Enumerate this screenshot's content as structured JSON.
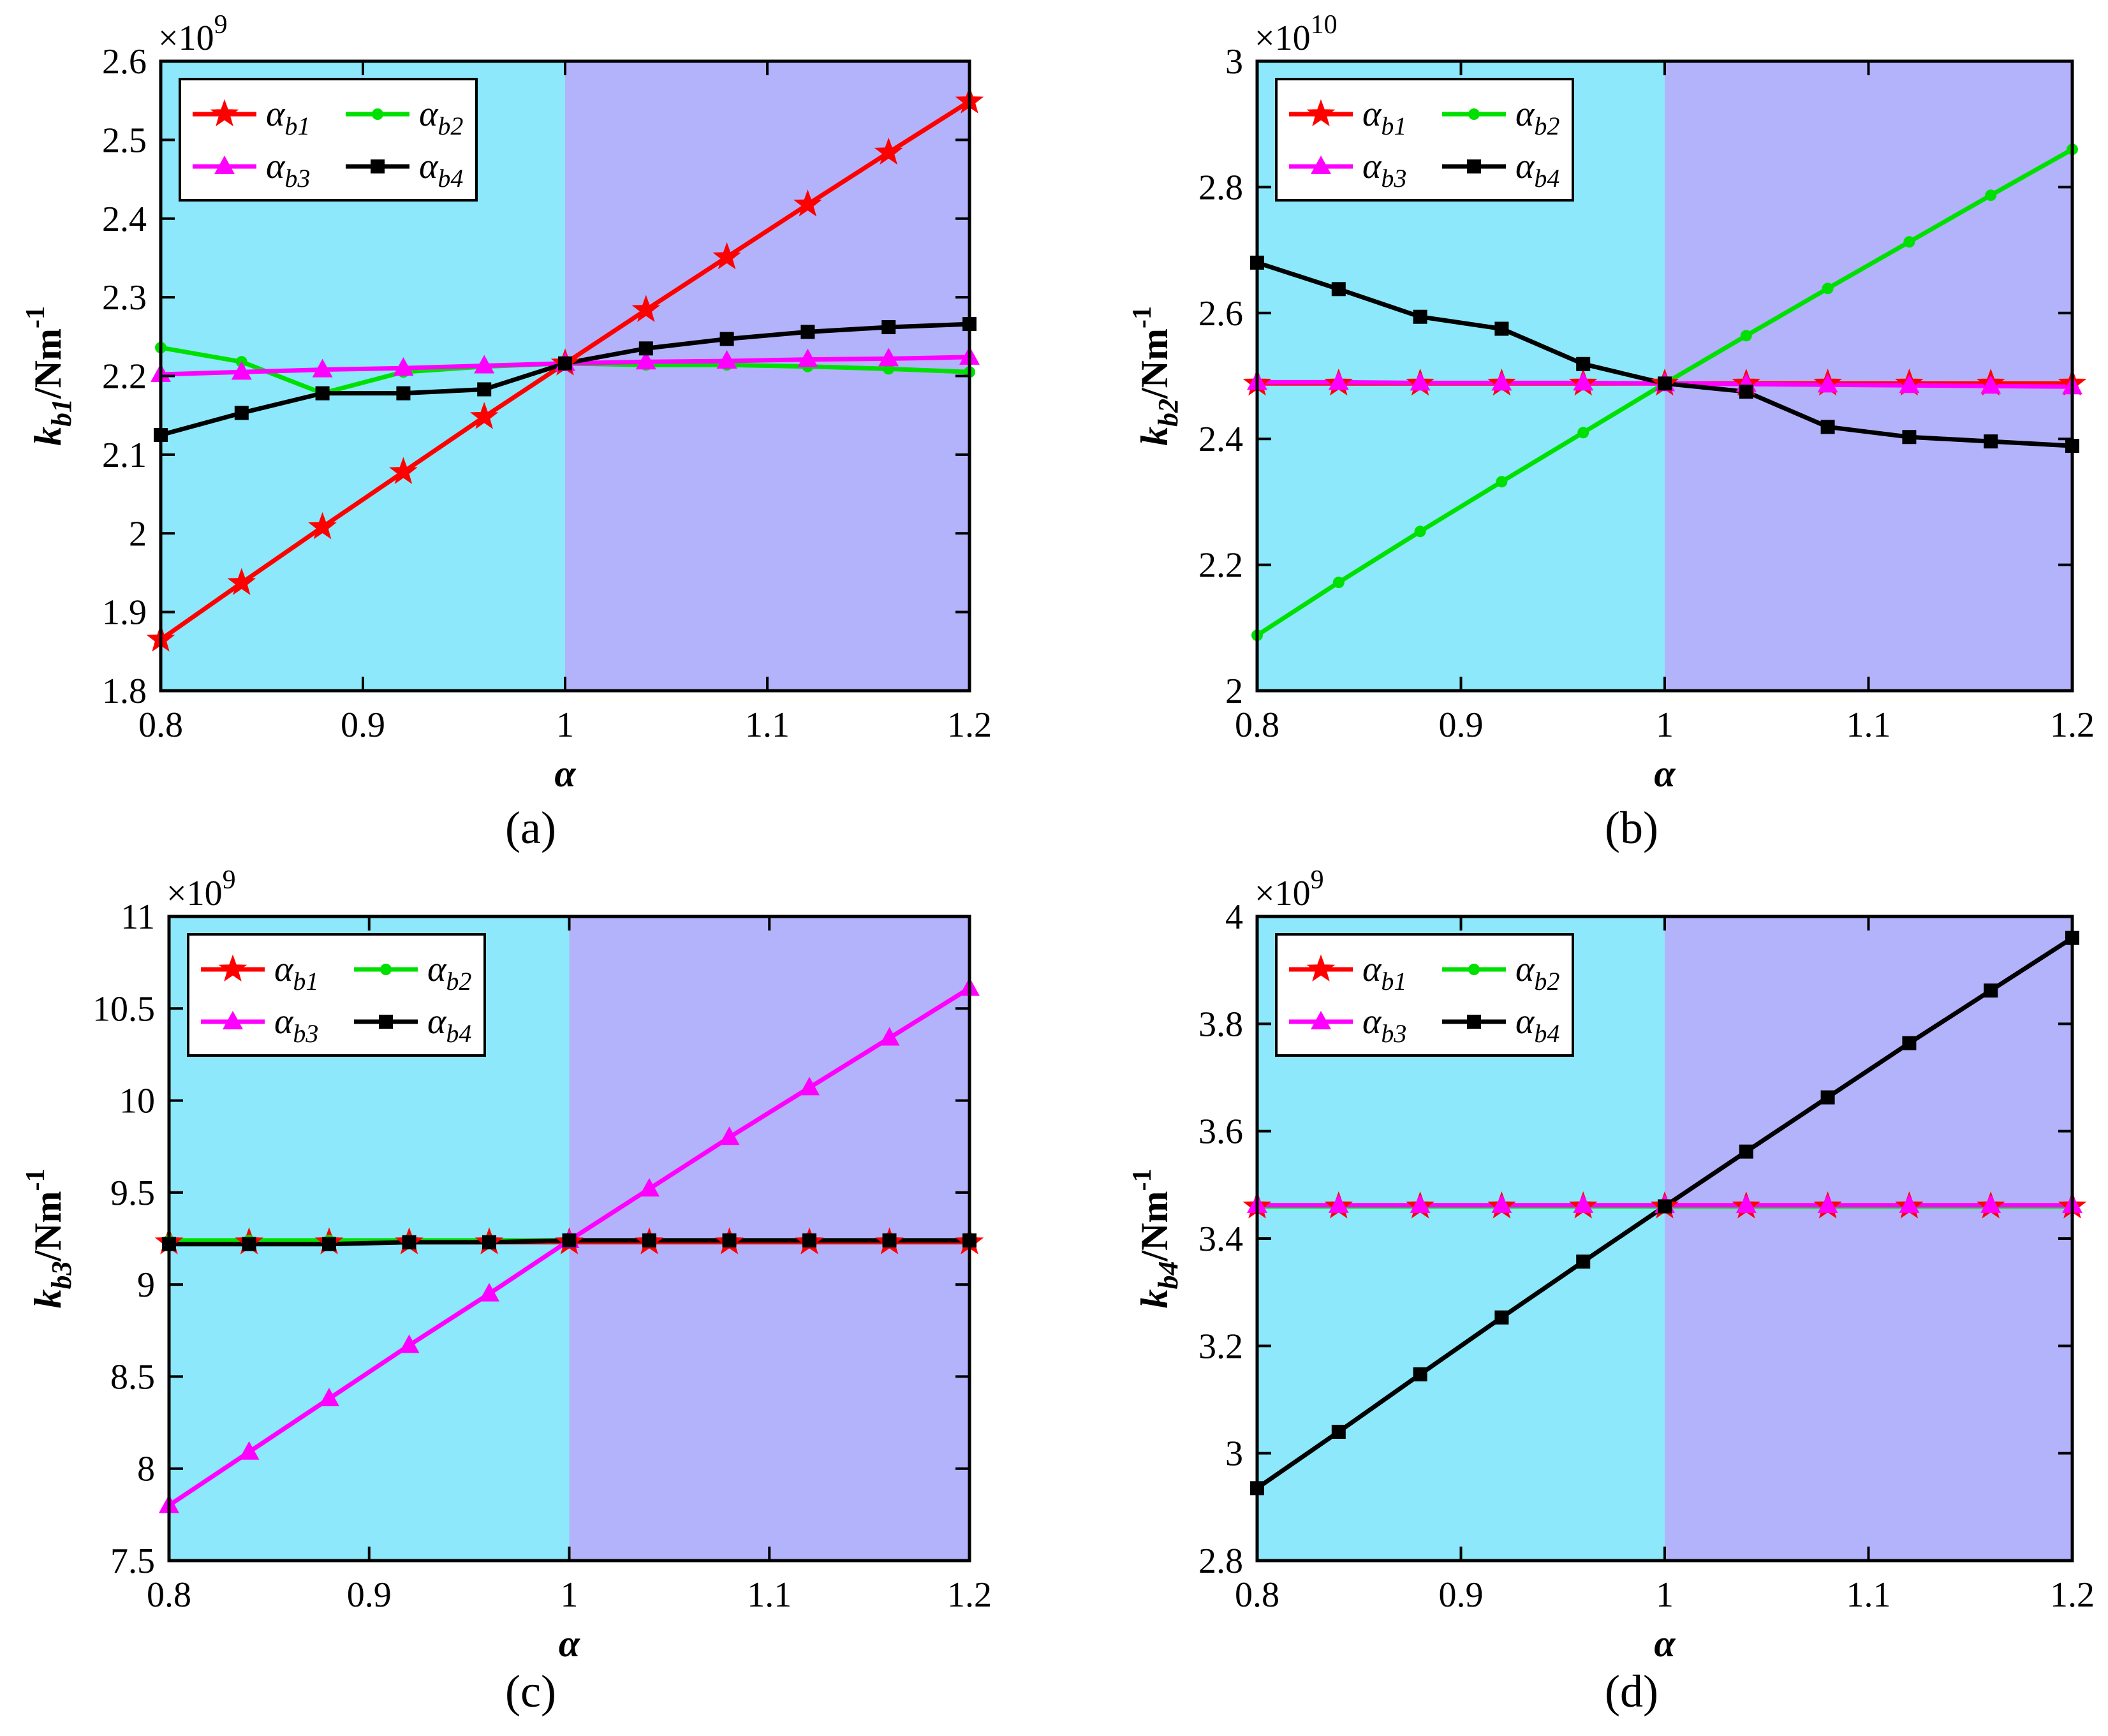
{
  "figure": {
    "panels": [
      "(a)",
      "(b)",
      "(c)",
      "(d)"
    ]
  },
  "chart_data": [
    {
      "type": "line",
      "panel_label": "(a)",
      "title": "",
      "xlabel": "α",
      "ylabel_main": "k",
      "ylabel_sub": "b1",
      "ylabel_unit": "/Nm",
      "ylabel_sup": "-1",
      "exponent_label": "×10",
      "exponent_power": "9",
      "xlim": [
        0.8,
        1.2
      ],
      "ylim": [
        1.8,
        2.6
      ],
      "xticks": [
        0.8,
        0.9,
        1.0,
        1.1,
        1.2
      ],
      "xtick_labels": [
        "0.8",
        "0.9",
        "1",
        "1.1",
        "1.2"
      ],
      "yticks": [
        1.8,
        1.9,
        2.0,
        2.1,
        2.2,
        2.3,
        2.4,
        2.5,
        2.6
      ],
      "ytick_labels": [
        "1.8",
        "1.9",
        "2",
        "2.1",
        "2.2",
        "2.3",
        "2.4",
        "2.5",
        "2.6"
      ],
      "shading": [
        {
          "from": 0.8,
          "to": 1.0,
          "color": "#8ce8fa"
        },
        {
          "from": 1.0,
          "to": 1.2,
          "color": "#b3b3fb"
        }
      ],
      "x": [
        0.8,
        0.84,
        0.88,
        0.92,
        0.96,
        1.0,
        1.04,
        1.08,
        1.12,
        1.16,
        1.2
      ],
      "series": [
        {
          "name": "α",
          "sub": "b1",
          "color": "#ff0000",
          "marker": "star",
          "values": [
            1.865,
            1.937,
            2.008,
            2.078,
            2.148,
            2.216,
            2.284,
            2.351,
            2.418,
            2.484,
            2.549
          ]
        },
        {
          "name": "α",
          "sub": "b2",
          "color": "#00e000",
          "marker": "circle",
          "values": [
            2.236,
            2.218,
            2.178,
            2.205,
            2.212,
            2.216,
            2.214,
            2.214,
            2.212,
            2.209,
            2.205
          ]
        },
        {
          "name": "α",
          "sub": "b3",
          "color": "#ff00ff",
          "marker": "triangle",
          "values": [
            2.202,
            2.205,
            2.208,
            2.21,
            2.213,
            2.216,
            2.218,
            2.219,
            2.221,
            2.222,
            2.224
          ]
        },
        {
          "name": "α",
          "sub": "b4",
          "color": "#000000",
          "marker": "square",
          "values": [
            2.125,
            2.153,
            2.178,
            2.178,
            2.183,
            2.216,
            2.235,
            2.247,
            2.256,
            2.262,
            2.266
          ]
        }
      ],
      "legend_order": [
        0,
        2,
        1,
        3
      ],
      "legend_location": "top-left"
    },
    {
      "type": "line",
      "panel_label": "(b)",
      "title": "",
      "xlabel": "α",
      "ylabel_main": "k",
      "ylabel_sub": "b2",
      "ylabel_unit": "/Nm",
      "ylabel_sup": "-1",
      "exponent_label": "×10",
      "exponent_power": "10",
      "xlim": [
        0.8,
        1.2
      ],
      "ylim": [
        2.0,
        3.0
      ],
      "xticks": [
        0.8,
        0.9,
        1.0,
        1.1,
        1.2
      ],
      "xtick_labels": [
        "0.8",
        "0.9",
        "1",
        "1.1",
        "1.2"
      ],
      "yticks": [
        2.0,
        2.2,
        2.4,
        2.6,
        2.8,
        3.0
      ],
      "ytick_labels": [
        "2",
        "2.2",
        "2.4",
        "2.6",
        "2.8",
        "3"
      ],
      "shading": [
        {
          "from": 0.8,
          "to": 1.0,
          "color": "#8ce8fa"
        },
        {
          "from": 1.0,
          "to": 1.2,
          "color": "#b3b3fb"
        }
      ],
      "x": [
        0.8,
        0.84,
        0.88,
        0.92,
        0.96,
        1.0,
        1.04,
        1.08,
        1.12,
        1.16,
        1.2
      ],
      "series": [
        {
          "name": "α",
          "sub": "b1",
          "color": "#ff0000",
          "marker": "star",
          "values": [
            2.488,
            2.488,
            2.488,
            2.488,
            2.488,
            2.488,
            2.488,
            2.488,
            2.488,
            2.488,
            2.488
          ]
        },
        {
          "name": "α",
          "sub": "b2",
          "color": "#00e000",
          "marker": "circle",
          "values": [
            2.088,
            2.172,
            2.253,
            2.332,
            2.41,
            2.488,
            2.564,
            2.639,
            2.713,
            2.787,
            2.86
          ]
        },
        {
          "name": "α",
          "sub": "b3",
          "color": "#ff00ff",
          "marker": "triangle",
          "values": [
            2.49,
            2.49,
            2.489,
            2.489,
            2.489,
            2.488,
            2.487,
            2.486,
            2.485,
            2.484,
            2.483
          ]
        },
        {
          "name": "α",
          "sub": "b4",
          "color": "#000000",
          "marker": "square",
          "values": [
            2.68,
            2.638,
            2.594,
            2.575,
            2.519,
            2.488,
            2.475,
            2.419,
            2.403,
            2.396,
            2.389
          ]
        }
      ],
      "legend_order": [
        0,
        2,
        1,
        3
      ],
      "legend_location": "top-left"
    },
    {
      "type": "line",
      "panel_label": "(c)",
      "title": "",
      "xlabel": "α",
      "ylabel_main": "k",
      "ylabel_sub": "b3",
      "ylabel_unit": "/Nm",
      "ylabel_sup": "-1",
      "exponent_label": "×10",
      "exponent_power": "9",
      "xlim": [
        0.8,
        1.2
      ],
      "ylim": [
        7.5,
        11.0
      ],
      "xticks": [
        0.8,
        0.9,
        1.0,
        1.1,
        1.2
      ],
      "xtick_labels": [
        "0.8",
        "0.9",
        "1",
        "1.1",
        "1.2"
      ],
      "yticks": [
        7.5,
        8.0,
        8.5,
        9.0,
        9.5,
        10.0,
        10.5,
        11.0
      ],
      "ytick_labels": [
        "7.5",
        "8",
        "8.5",
        "9",
        "9.5",
        "10",
        "10.5",
        "11"
      ],
      "shading": [
        {
          "from": 0.8,
          "to": 1.0,
          "color": "#8ce8fa"
        },
        {
          "from": 1.0,
          "to": 1.2,
          "color": "#b3b3fb"
        }
      ],
      "x": [
        0.8,
        0.84,
        0.88,
        0.92,
        0.96,
        1.0,
        1.04,
        1.08,
        1.12,
        1.16,
        1.2
      ],
      "series": [
        {
          "name": "α",
          "sub": "b1",
          "color": "#ff0000",
          "marker": "star",
          "values": [
            9.23,
            9.23,
            9.23,
            9.23,
            9.23,
            9.23,
            9.23,
            9.23,
            9.23,
            9.23,
            9.23
          ]
        },
        {
          "name": "α",
          "sub": "b2",
          "color": "#00e000",
          "marker": "circle",
          "values": [
            9.24,
            9.24,
            9.24,
            9.24,
            9.24,
            9.24,
            9.24,
            9.24,
            9.24,
            9.24,
            9.24
          ]
        },
        {
          "name": "α",
          "sub": "b3",
          "color": "#ff00ff",
          "marker": "triangle",
          "values": [
            7.8,
            8.09,
            8.38,
            8.67,
            8.95,
            9.24,
            9.52,
            9.8,
            10.07,
            10.34,
            10.61
          ]
        },
        {
          "name": "α",
          "sub": "b4",
          "color": "#000000",
          "marker": "square",
          "values": [
            9.22,
            9.22,
            9.22,
            9.23,
            9.23,
            9.24,
            9.24,
            9.24,
            9.24,
            9.24,
            9.24
          ]
        }
      ],
      "legend_order": [
        0,
        2,
        1,
        3
      ],
      "legend_location": "top-left"
    },
    {
      "type": "line",
      "panel_label": "(d)",
      "title": "",
      "xlabel": "α",
      "ylabel_main": "k",
      "ylabel_sub": "b4",
      "ylabel_unit": "/Nm",
      "ylabel_sup": "-1",
      "exponent_label": "×10",
      "exponent_power": "9",
      "xlim": [
        0.8,
        1.2
      ],
      "ylim": [
        2.8,
        4.0
      ],
      "xticks": [
        0.8,
        0.9,
        1.0,
        1.1,
        1.2
      ],
      "xtick_labels": [
        "0.8",
        "0.9",
        "1",
        "1.1",
        "1.2"
      ],
      "yticks": [
        2.8,
        3.0,
        3.2,
        3.4,
        3.6,
        3.8,
        4.0
      ],
      "ytick_labels": [
        "2.8",
        "3",
        "3.2",
        "3.4",
        "3.6",
        "3.8",
        "4"
      ],
      "shading": [
        {
          "from": 0.8,
          "to": 1.0,
          "color": "#8ce8fa"
        },
        {
          "from": 1.0,
          "to": 1.2,
          "color": "#b3b3fb"
        }
      ],
      "x": [
        0.8,
        0.84,
        0.88,
        0.92,
        0.96,
        1.0,
        1.04,
        1.08,
        1.12,
        1.16,
        1.2
      ],
      "series": [
        {
          "name": "α",
          "sub": "b1",
          "color": "#ff0000",
          "marker": "star",
          "values": [
            3.46,
            3.46,
            3.46,
            3.46,
            3.46,
            3.46,
            3.46,
            3.46,
            3.46,
            3.46,
            3.46
          ]
        },
        {
          "name": "α",
          "sub": "b2",
          "color": "#00e000",
          "marker": "circle",
          "values": [
            3.46,
            3.46,
            3.46,
            3.46,
            3.46,
            3.46,
            3.46,
            3.46,
            3.46,
            3.46,
            3.46
          ]
        },
        {
          "name": "α",
          "sub": "b3",
          "color": "#ff00ff",
          "marker": "triangle",
          "values": [
            3.462,
            3.462,
            3.462,
            3.462,
            3.462,
            3.462,
            3.462,
            3.462,
            3.462,
            3.462,
            3.462
          ]
        },
        {
          "name": "α",
          "sub": "b4",
          "color": "#000000",
          "marker": "square",
          "values": [
            2.935,
            3.04,
            3.147,
            3.253,
            3.357,
            3.46,
            3.562,
            3.663,
            3.764,
            3.862,
            3.96
          ]
        }
      ],
      "legend_order": [
        0,
        2,
        1,
        3
      ],
      "legend_location": "top-left"
    }
  ]
}
